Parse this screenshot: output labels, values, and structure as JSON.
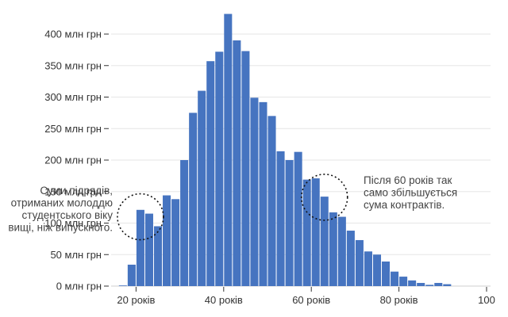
{
  "chart_data": {
    "type": "bar",
    "title": "",
    "xlabel": "",
    "ylabel": "",
    "bin_width": 2,
    "x_start": 16,
    "values": [
      1,
      34,
      121,
      115,
      95,
      144,
      138,
      200,
      275,
      310,
      357,
      372,
      432,
      390,
      373,
      299,
      292,
      270,
      214,
      200,
      213,
      169,
      171,
      142,
      117,
      110,
      88,
      73,
      55,
      50,
      39,
      23,
      15,
      9,
      5,
      2,
      5,
      3
    ],
    "ylim": [
      0,
      440
    ],
    "xlim": [
      0,
      100
    ],
    "yticks": [
      {
        "value": 0,
        "label": "0 млн грн"
      },
      {
        "value": 50,
        "label": "50 млн грн"
      },
      {
        "value": 100,
        "label": "100 млн грн"
      },
      {
        "value": 150,
        "label": "150 млн грн"
      },
      {
        "value": 200,
        "label": "200 млн грн"
      },
      {
        "value": 250,
        "label": "250 млн грн"
      },
      {
        "value": 300,
        "label": "300 млн грн"
      },
      {
        "value": 350,
        "label": "350 млн грн"
      },
      {
        "value": 400,
        "label": "400 млн грн"
      }
    ],
    "xticks": [
      {
        "value": 20,
        "label": "20 років"
      },
      {
        "value": 40,
        "label": "40 років"
      },
      {
        "value": 60,
        "label": "60 років"
      },
      {
        "value": 80,
        "label": "80 років"
      },
      {
        "value": 100,
        "label": "100"
      }
    ],
    "grid": true,
    "bar_color": "#4674c0",
    "grid_color": "#e6e6e6",
    "annotations": [
      {
        "lines": [
          "Суми підрядів,",
          "отриманих молоддю",
          "студентського віку",
          "вищі, ніж випускного."
        ],
        "align": "right",
        "circle_center": [
          21,
          110
        ]
      },
      {
        "lines": [
          "Після 60 років так",
          "само збільшується",
          "сума контрактів."
        ],
        "align": "left",
        "circle_center": [
          63,
          141
        ]
      }
    ]
  }
}
